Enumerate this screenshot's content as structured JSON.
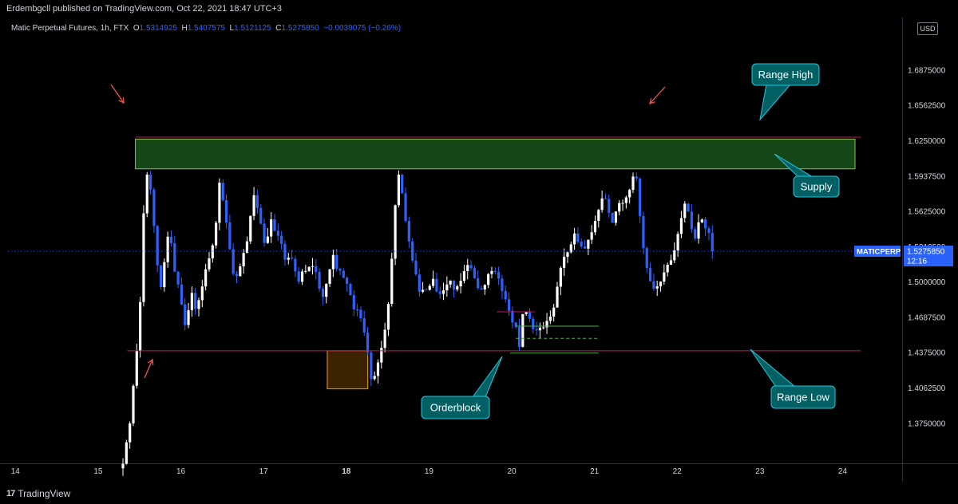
{
  "publisher": "Erdembgcll published on TradingView.com, Oct 22, 2021 18:47 UTC+3",
  "legend": {
    "symbol": "Matic Perpetual Futures, 1h, FTX",
    "o_label": "O",
    "o": "1.5314925",
    "h_label": "H",
    "h": "1.5407575",
    "l_label": "L",
    "l": "1.5121125",
    "c_label": "C",
    "c": "1.5275850",
    "change": "−0.0039075 (−0.26%)"
  },
  "currency_button": "USD",
  "footer_brand": "TradingView",
  "colors": {
    "background": "#000000",
    "up_candle": "#ffffff",
    "down_candle": "#2962ff",
    "range_line": "#c2185b",
    "supply_fill": "#1b5e20",
    "supply_border": "#8bc34a",
    "orderblock_fill": "#4a2a00",
    "orderblock_border": "#ff9800",
    "annotation_box": "#006064",
    "annotation_border": "#26c6da",
    "arrow": "#ef5350",
    "price_tag": "#2962ff"
  },
  "chart_data": {
    "type": "candlestick",
    "symbol": "Matic Perpetual Futures, 1h, FTX",
    "price_tag": {
      "label": "MATICPERP",
      "price": "1.5275850",
      "countdown": "12:16",
      "value": 1.527585
    },
    "y_ticks": [
      "1.6875000",
      "1.6562500",
      "1.6250000",
      "1.5937500",
      "1.5625000",
      "1.5312500",
      "1.5000000",
      "1.4687500",
      "1.4375000",
      "1.4062500",
      "1.3750000"
    ],
    "ylim": [
      1.3406,
      1.7344
    ],
    "x_ticks": [
      "14",
      "15",
      "16",
      "17",
      "18",
      "19",
      "20",
      "21",
      "22",
      "23",
      "24"
    ],
    "x_tick_values": [
      14,
      15,
      16,
      17,
      18,
      19,
      20,
      21,
      22,
      23,
      24
    ],
    "xlim": [
      13.91,
      24.7
    ],
    "range_high": 1.6285,
    "range_low": 1.4395,
    "supply_zone": {
      "from": 15.45,
      "to": 24.15,
      "top": 1.6268,
      "bottom": 1.6005
    },
    "orderblock_zone": {
      "from": 17.77,
      "to": 18.26,
      "top": 1.4395,
      "bottom": 1.4058
    },
    "closes": [
      1.3395,
      1.3585,
      1.3753,
      1.4085,
      1.4397,
      1.4826,
      1.5611,
      1.5954,
      1.5821,
      1.5499,
      1.5151,
      1.4958,
      1.5179,
      1.5405,
      1.5347,
      1.5095,
      1.4981,
      1.4804,
      1.4623,
      1.4755,
      1.4907,
      1.4765,
      1.4843,
      1.4964,
      1.5116,
      1.5213,
      1.5328,
      1.5528,
      1.5883,
      1.5728,
      1.5531,
      1.5293,
      1.5075,
      1.5056,
      1.5142,
      1.5261,
      1.5363,
      1.5588,
      1.5772,
      1.5659,
      1.552,
      1.5349,
      1.5406,
      1.5558,
      1.5457,
      1.5413,
      1.534,
      1.5201,
      1.5219,
      1.5209,
      1.5097,
      1.5006,
      1.5097,
      1.5101,
      1.5138,
      1.5144,
      1.5093,
      1.4944,
      1.4872,
      1.4987,
      1.5117,
      1.5243,
      1.512,
      1.5104,
      1.5042,
      1.4986,
      1.4888,
      1.4761,
      1.4759,
      1.4683,
      1.4557,
      1.4382,
      1.4145,
      1.4172,
      1.4291,
      1.4421,
      1.4582,
      1.481,
      1.521,
      1.5683,
      1.5954,
      1.5789,
      1.5543,
      1.5363,
      1.5193,
      1.507,
      1.4918,
      1.4935,
      1.4934,
      1.4969,
      1.5031,
      1.492,
      1.4898,
      1.493,
      1.4981,
      1.5016,
      1.4938,
      1.4965,
      1.5014,
      1.51,
      1.5154,
      1.5126,
      1.5038,
      1.4949,
      1.4938,
      1.4977,
      1.5074,
      1.5101,
      1.5092,
      1.5033,
      1.4924,
      1.4851,
      1.4749,
      1.4645,
      1.4606,
      1.443,
      1.472,
      1.4738,
      1.4679,
      1.4586,
      1.4577,
      1.46,
      1.4602,
      1.4659,
      1.4698,
      1.4778,
      1.4962,
      1.5129,
      1.5226,
      1.5267,
      1.5337,
      1.5433,
      1.536,
      1.5318,
      1.5299,
      1.5378,
      1.5444,
      1.5544,
      1.5642,
      1.5743,
      1.574,
      1.5616,
      1.5528,
      1.5627,
      1.5702,
      1.5703,
      1.5753,
      1.5819,
      1.5937,
      1.592,
      1.5587,
      1.5304,
      1.5127,
      1.501,
      1.4946,
      1.4965,
      1.5007,
      1.5089,
      1.5156,
      1.5196,
      1.5283,
      1.5429,
      1.557,
      1.5697,
      1.5627,
      1.5471,
      1.5388,
      1.5532,
      1.5557,
      1.5478,
      1.5437,
      1.5276
    ],
    "direction_rule": "candle is up (white) when close >= previous close, down (blue) otherwise"
  },
  "annotations": [
    {
      "label": "Range High"
    },
    {
      "label": "Supply"
    },
    {
      "label": "Orderblock"
    },
    {
      "label": "Range Low"
    }
  ]
}
